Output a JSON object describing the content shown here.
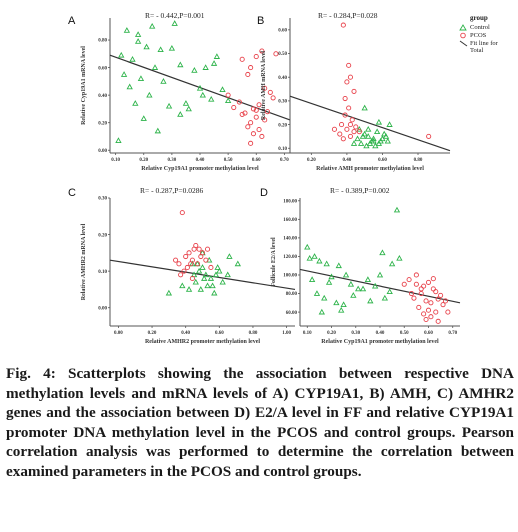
{
  "colors": {
    "control": "#2db34a",
    "pcos": "#e8414a",
    "fit": "#333333"
  },
  "legend": {
    "title": "group",
    "items": [
      {
        "label": "Control",
        "marker": "triangle",
        "color": "#2db34a"
      },
      {
        "label": "PCOS",
        "marker": "circle",
        "color": "#e8414a"
      },
      {
        "label": "Fit line for Total",
        "marker": "line",
        "color": "#333333"
      }
    ]
  },
  "caption": "Fig. 4: Scatterplots showing the association between respective DNA methylation levels and mRNA levels of A) CYP19A1, B) AMH, C) AMHR2 genes and the association between D) E2/A level in FF and relative CYP19A1 promoter DNA methylation level in the PCOS and control groups. Pearson correlation analysis was performed to determine the correlation between examined parameters in the PCOS and control groups.",
  "chart_data": [
    {
      "type": "scatter",
      "panel": "A",
      "stat": "R= - 0.442,P=0.001",
      "xlabel": "Relative Cyp19A1 promoter methylation level",
      "ylabel": "Relative Cyp19A1 mRNA level",
      "xlim": [
        0.08,
        0.72
      ],
      "ylim": [
        -0.02,
        0.96
      ],
      "xticks": [
        "0.10",
        "0.20",
        "0.30",
        "0.40",
        "0.50",
        "0.60",
        "0.70"
      ],
      "yticks": [
        "0.00",
        "0.20",
        "0.40",
        "0.60",
        "0.80"
      ],
      "fit": {
        "x": [
          0.08,
          0.72
        ],
        "y": [
          0.69,
          0.22
        ]
      },
      "series": [
        {
          "name": "Control",
          "marker": "triangle",
          "x": [
            0.14,
            0.18,
            0.21,
            0.26,
            0.12,
            0.16,
            0.24,
            0.3,
            0.33,
            0.13,
            0.19,
            0.27,
            0.38,
            0.42,
            0.45,
            0.15,
            0.22,
            0.35,
            0.4,
            0.48,
            0.17,
            0.29,
            0.33,
            0.44,
            0.5,
            0.2,
            0.25,
            0.36,
            0.41,
            0.11,
            0.31,
            0.46,
            0.23,
            0.18
          ],
          "y": [
            0.87,
            0.84,
            0.75,
            0.73,
            0.69,
            0.66,
            0.6,
            0.74,
            0.62,
            0.55,
            0.52,
            0.5,
            0.58,
            0.6,
            0.63,
            0.46,
            0.4,
            0.34,
            0.45,
            0.44,
            0.34,
            0.32,
            0.26,
            0.37,
            0.36,
            0.23,
            0.14,
            0.3,
            0.4,
            0.07,
            0.92,
            0.68,
            0.9,
            0.79
          ]
        },
        {
          "name": "PCOS",
          "marker": "circle",
          "x": [
            0.55,
            0.58,
            0.6,
            0.62,
            0.57,
            0.63,
            0.65,
            0.54,
            0.59,
            0.61,
            0.66,
            0.56,
            0.6,
            0.63,
            0.58,
            0.52,
            0.64,
            0.57,
            0.61,
            0.59,
            0.62,
            0.55,
            0.6,
            0.5,
            0.67,
            0.58
          ],
          "y": [
            0.66,
            0.6,
            0.68,
            0.72,
            0.55,
            0.45,
            0.42,
            0.35,
            0.3,
            0.33,
            0.38,
            0.27,
            0.24,
            0.22,
            0.2,
            0.31,
            0.28,
            0.17,
            0.15,
            0.12,
            0.1,
            0.26,
            0.29,
            0.4,
            0.7,
            0.05
          ]
        }
      ]
    },
    {
      "type": "scatter",
      "panel": "B",
      "stat": "R= - 0.284,P=0.028",
      "xlabel": "Relative AMH promoter methylation level",
      "ylabel": "Relative AMH mRNA level",
      "xlim": [
        0.08,
        0.98
      ],
      "ylim": [
        0.08,
        0.65
      ],
      "xticks": [
        "0.20",
        "0.40",
        "0.60",
        "0.80"
      ],
      "yticks": [
        "0.10",
        "0.20",
        "0.30",
        "0.40",
        "0.50",
        "0.60"
      ],
      "fit": {
        "x": [
          0.08,
          0.98
        ],
        "y": [
          0.32,
          0.09
        ]
      },
      "series": [
        {
          "name": "Control",
          "marker": "triangle",
          "x": [
            0.46,
            0.5,
            0.52,
            0.55,
            0.48,
            0.58,
            0.6,
            0.62,
            0.51,
            0.54,
            0.57,
            0.47,
            0.53,
            0.56,
            0.59,
            0.64,
            0.49,
            0.61,
            0.52,
            0.55,
            0.44,
            0.58,
            0.5,
            0.63
          ],
          "y": [
            0.14,
            0.16,
            0.15,
            0.13,
            0.12,
            0.12,
            0.14,
            0.15,
            0.11,
            0.13,
            0.17,
            0.18,
            0.12,
            0.11,
            0.13,
            0.2,
            0.15,
            0.16,
            0.18,
            0.14,
            0.12,
            0.21,
            0.27,
            0.13
          ]
        },
        {
          "name": "PCOS",
          "marker": "circle",
          "x": [
            0.38,
            0.42,
            0.4,
            0.44,
            0.39,
            0.41,
            0.43,
            0.37,
            0.45,
            0.4,
            0.36,
            0.42,
            0.38,
            0.47,
            0.33,
            0.86,
            0.41,
            0.44,
            0.39,
            0.42
          ],
          "y": [
            0.62,
            0.4,
            0.38,
            0.34,
            0.31,
            0.27,
            0.22,
            0.2,
            0.19,
            0.18,
            0.16,
            0.15,
            0.14,
            0.17,
            0.18,
            0.15,
            0.45,
            0.17,
            0.24,
            0.2
          ]
        }
      ]
    },
    {
      "type": "scatter",
      "panel": "C",
      "stat": "R= - 0.287,P=0.0286",
      "xlabel": "Relative AMHR2 promoter methylation level",
      "ylabel": "Relative AMHR2 mRNA level",
      "xlim": [
        -0.05,
        1.05
      ],
      "ylim": [
        -0.05,
        0.3
      ],
      "xticks": [
        "0.00",
        "0.20",
        "0.40",
        "0.60",
        "0.80",
        "1.00"
      ],
      "yticks": [
        "0.00",
        "0.10",
        "0.20",
        "0.30"
      ],
      "fit": {
        "x": [
          -0.05,
          1.05
        ],
        "y": [
          0.13,
          0.05
        ]
      },
      "series": [
        {
          "name": "Control",
          "marker": "triangle",
          "x": [
            0.44,
            0.48,
            0.5,
            0.52,
            0.55,
            0.46,
            0.58,
            0.6,
            0.53,
            0.49,
            0.57,
            0.62,
            0.45,
            0.51,
            0.56,
            0.47,
            0.54,
            0.59,
            0.42,
            0.3,
            0.66,
            0.71,
            0.65,
            0.38,
            0.5
          ],
          "y": [
            0.12,
            0.1,
            0.11,
            0.09,
            0.08,
            0.07,
            0.09,
            0.1,
            0.06,
            0.05,
            0.04,
            0.07,
            0.09,
            0.08,
            0.06,
            0.12,
            0.13,
            0.11,
            0.05,
            0.04,
            0.14,
            0.12,
            0.09,
            0.06,
            0.15
          ]
        },
        {
          "name": "PCOS",
          "marker": "circle",
          "x": [
            0.38,
            0.42,
            0.45,
            0.48,
            0.4,
            0.44,
            0.5,
            0.36,
            0.47,
            0.52,
            0.41,
            0.55,
            0.39,
            0.46,
            0.43,
            0.34,
            0.49,
            0.37,
            0.53,
            0.44
          ],
          "y": [
            0.26,
            0.15,
            0.16,
            0.16,
            0.14,
            0.13,
            0.15,
            0.12,
            0.12,
            0.13,
            0.11,
            0.11,
            0.1,
            0.17,
            0.12,
            0.13,
            0.14,
            0.09,
            0.16,
            0.08
          ]
        }
      ]
    },
    {
      "type": "scatter",
      "panel": "D",
      "stat": "R= - 0.389,P=0.002",
      "xlabel": "Relative Cyp19A1 promoter methylation level",
      "ylabel": "Follicule E2/A level",
      "xlim": [
        0.07,
        0.73
      ],
      "ylim": [
        45,
        183
      ],
      "xticks": [
        "0.10",
        "0.20",
        "0.30",
        "0.40",
        "0.50",
        "0.60",
        "0.70"
      ],
      "yticks": [
        "60.00",
        "80.00",
        "100.00",
        "120.00",
        "140.00",
        "160.00",
        "180.00"
      ],
      "fit": {
        "x": [
          0.07,
          0.73
        ],
        "y": [
          106,
          70
        ]
      },
      "series": [
        {
          "name": "Control",
          "marker": "triangle",
          "x": [
            0.1,
            0.13,
            0.15,
            0.18,
            0.12,
            0.2,
            0.23,
            0.26,
            0.14,
            0.17,
            0.28,
            0.31,
            0.35,
            0.38,
            0.42,
            0.45,
            0.22,
            0.25,
            0.33,
            0.4,
            0.47,
            0.11,
            0.19,
            0.29,
            0.36,
            0.44,
            0.16,
            0.24,
            0.48,
            0.41
          ],
          "y": [
            130,
            120,
            115,
            112,
            95,
            98,
            110,
            100,
            80,
            75,
            90,
            85,
            95,
            88,
            75,
            112,
            70,
            68,
            85,
            100,
            170,
            118,
            92,
            78,
            72,
            82,
            60,
            62,
            118,
            124
          ]
        },
        {
          "name": "PCOS",
          "marker": "circle",
          "x": [
            0.52,
            0.55,
            0.58,
            0.6,
            0.62,
            0.57,
            0.63,
            0.65,
            0.54,
            0.59,
            0.61,
            0.66,
            0.56,
            0.6,
            0.63,
            0.58,
            0.53,
            0.64,
            0.57,
            0.61,
            0.59,
            0.62,
            0.55,
            0.68,
            0.5,
            0.67,
            0.64
          ],
          "y": [
            95,
            90,
            88,
            92,
            85,
            80,
            82,
            78,
            75,
            72,
            70,
            68,
            65,
            62,
            60,
            58,
            80,
            74,
            85,
            55,
            52,
            96,
            100,
            60,
            90,
            72,
            50
          ]
        }
      ]
    }
  ]
}
